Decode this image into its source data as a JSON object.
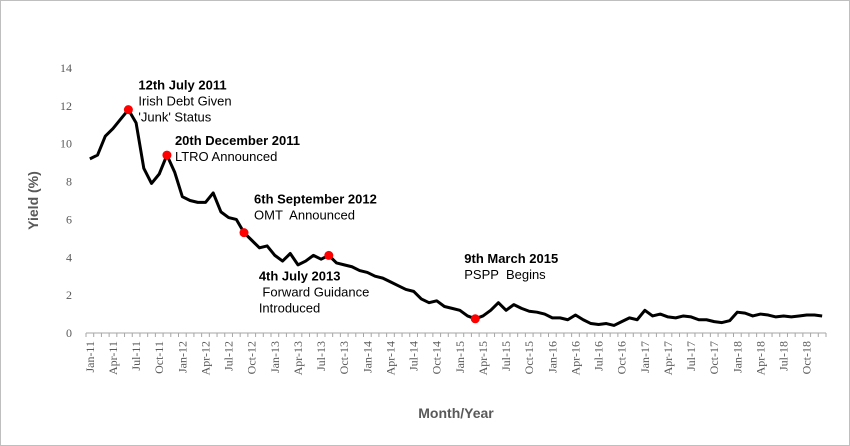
{
  "chart_data": {
    "type": "line",
    "xlabel": "Month/Year",
    "ylabel": "Yield (%)",
    "ylim": [
      0,
      14
    ],
    "yticks": [
      0,
      2,
      4,
      6,
      8,
      10,
      12,
      14
    ],
    "grid": false,
    "legend": "none",
    "line_color": "#000000",
    "marker_color": "#ff0000",
    "x_tick_labels": [
      "Jan-11",
      "Apr-11",
      "Jul-11",
      "Oct-11",
      "Jan-12",
      "Apr-12",
      "Jul-12",
      "Oct-12",
      "Jan-13",
      "Apr-13",
      "Jul-13",
      "Oct-13",
      "Jan-14",
      "Apr-14",
      "Jul-14",
      "Oct-14",
      "Jan-15",
      "Apr-15",
      "Jul-15",
      "Oct-15",
      "Jan-16",
      "Apr-16",
      "Jul-16",
      "Oct-16",
      "Jan-17",
      "Apr-17",
      "Jul-17",
      "Oct-17",
      "Jan-18",
      "Apr-18",
      "Jul-18",
      "Oct-18"
    ],
    "x": [
      "Jan-11",
      "Feb-11",
      "Mar-11",
      "Apr-11",
      "May-11",
      "Jun-11",
      "Jul-11",
      "Aug-11",
      "Sep-11",
      "Oct-11",
      "Nov-11",
      "Dec-11",
      "Jan-12",
      "Feb-12",
      "Mar-12",
      "Apr-12",
      "May-12",
      "Jun-12",
      "Jul-12",
      "Aug-12",
      "Sep-12",
      "Oct-12",
      "Nov-12",
      "Dec-12",
      "Jan-13",
      "Feb-13",
      "Mar-13",
      "Apr-13",
      "May-13",
      "Jun-13",
      "Jul-13",
      "Aug-13",
      "Sep-13",
      "Oct-13",
      "Nov-13",
      "Dec-13",
      "Jan-14",
      "Feb-14",
      "Mar-14",
      "Apr-14",
      "May-14",
      "Jun-14",
      "Jul-14",
      "Aug-14",
      "Sep-14",
      "Oct-14",
      "Nov-14",
      "Dec-14",
      "Jan-15",
      "Feb-15",
      "Mar-15",
      "Apr-15",
      "May-15",
      "Jun-15",
      "Jul-15",
      "Aug-15",
      "Sep-15",
      "Oct-15",
      "Nov-15",
      "Dec-15",
      "Jan-16",
      "Feb-16",
      "Mar-16",
      "Apr-16",
      "May-16",
      "Jun-16",
      "Jul-16",
      "Aug-16",
      "Sep-16",
      "Oct-16",
      "Nov-16",
      "Dec-16",
      "Jan-17",
      "Feb-17",
      "Mar-17",
      "Apr-17",
      "May-17",
      "Jun-17",
      "Jul-17",
      "Aug-17",
      "Sep-17",
      "Oct-17",
      "Nov-17",
      "Dec-17",
      "Jan-18",
      "Feb-18",
      "Mar-18",
      "Apr-18",
      "May-18",
      "Jun-18",
      "Jul-18",
      "Aug-18",
      "Sep-18",
      "Oct-18",
      "Nov-18",
      "Dec-18"
    ],
    "series": [
      {
        "values": [
          9.2,
          9.4,
          10.4,
          10.8,
          11.3,
          11.8,
          11.1,
          8.7,
          7.9,
          8.4,
          9.4,
          8.5,
          7.2,
          7.0,
          6.9,
          6.9,
          7.4,
          6.4,
          6.1,
          6.0,
          5.3,
          4.9,
          4.5,
          4.6,
          4.1,
          3.8,
          4.2,
          3.6,
          3.8,
          4.1,
          3.9,
          4.1,
          3.7,
          3.6,
          3.5,
          3.3,
          3.2,
          3.0,
          2.9,
          2.7,
          2.5,
          2.3,
          2.2,
          1.8,
          1.6,
          1.7,
          1.4,
          1.3,
          1.2,
          0.9,
          0.75,
          0.9,
          1.2,
          1.6,
          1.2,
          1.5,
          1.3,
          1.15,
          1.1,
          1.0,
          0.8,
          0.8,
          0.7,
          0.95,
          0.7,
          0.5,
          0.45,
          0.5,
          0.4,
          0.6,
          0.8,
          0.7,
          1.2,
          0.9,
          1.0,
          0.85,
          0.8,
          0.9,
          0.85,
          0.7,
          0.7,
          0.6,
          0.55,
          0.65,
          1.1,
          1.05,
          0.9,
          1.0,
          0.95,
          0.85,
          0.9,
          0.85,
          0.9,
          0.95,
          0.95,
          0.9
        ]
      }
    ],
    "annotations": [
      {
        "x": "Jun-11",
        "y": 11.8,
        "title": "12th July 2011",
        "lines": [
          "Irish Debt Given",
          "'Junk' Status"
        ]
      },
      {
        "x": "Nov-11",
        "y": 9.4,
        "title": "20th December 2011",
        "lines": [
          "LTRO Announced"
        ]
      },
      {
        "x": "Sep-12",
        "y": 5.3,
        "title": "6th September 2012",
        "lines": [
          "OMT  Announced"
        ]
      },
      {
        "x": "Aug-13",
        "y": 4.1,
        "title": "4th July 2013",
        "lines": [
          " Forward Guidance",
          "Introduced"
        ]
      },
      {
        "x": "Mar-15",
        "y": 0.75,
        "title": "9th March 2015",
        "lines": [
          "PSPP  Begins"
        ]
      }
    ]
  }
}
